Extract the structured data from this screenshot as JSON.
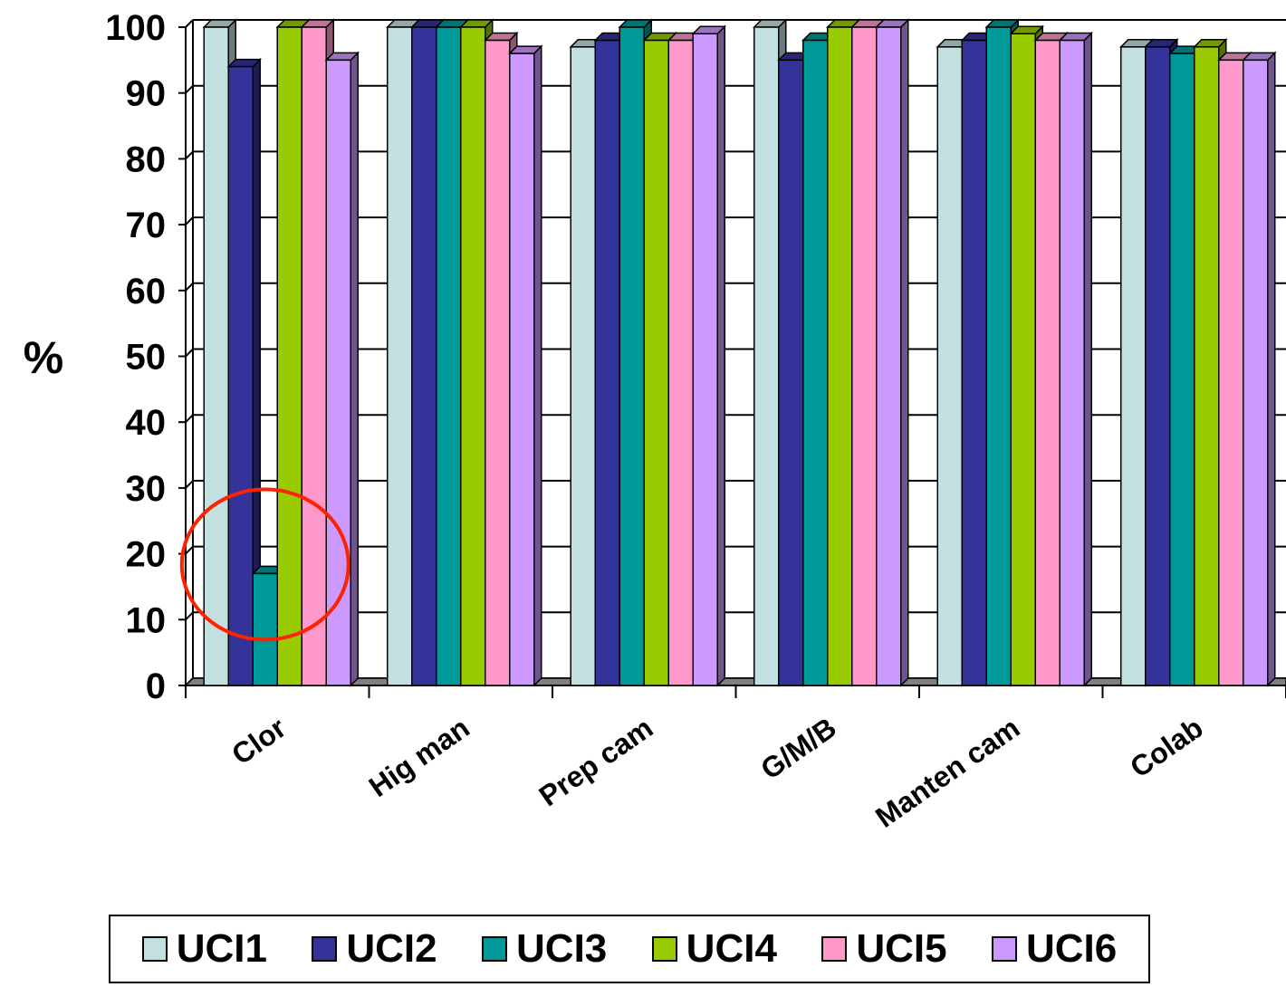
{
  "chart_data": {
    "type": "bar",
    "title": "",
    "xlabel": "",
    "ylabel": "%",
    "ylim": [
      0,
      100
    ],
    "yticks": [
      "0",
      "10",
      "20",
      "30",
      "40",
      "50",
      "60",
      "70",
      "80",
      "90",
      "100"
    ],
    "grid": true,
    "legend_position": "bottom",
    "style": "3d-clustered-column",
    "categories": [
      "Clor",
      "Hig man",
      "Prep cam",
      "G/M/B",
      "Manten cam",
      "Colab"
    ],
    "series": [
      {
        "name": "UCI1",
        "color": "#c2e0e0",
        "values": [
          100,
          100,
          97,
          100,
          97,
          97
        ]
      },
      {
        "name": "UCI2",
        "color": "#333399",
        "values": [
          94,
          100,
          98,
          95,
          98,
          97
        ]
      },
      {
        "name": "UCI3",
        "color": "#009999",
        "values": [
          17,
          100,
          100,
          98,
          100,
          96
        ]
      },
      {
        "name": "UCI4",
        "color": "#99cc00",
        "values": [
          100,
          100,
          98,
          100,
          99,
          97
        ]
      },
      {
        "name": "UCI5",
        "color": "#ff99cc",
        "values": [
          100,
          98,
          98,
          100,
          98,
          95
        ]
      },
      {
        "name": "UCI6",
        "color": "#cc99ff",
        "values": [
          95,
          96,
          99,
          100,
          98,
          95
        ]
      }
    ],
    "annotation": {
      "type": "ellipse",
      "color": "#ff2200",
      "category": "Clor",
      "series": "UCI3",
      "value": 17
    }
  }
}
